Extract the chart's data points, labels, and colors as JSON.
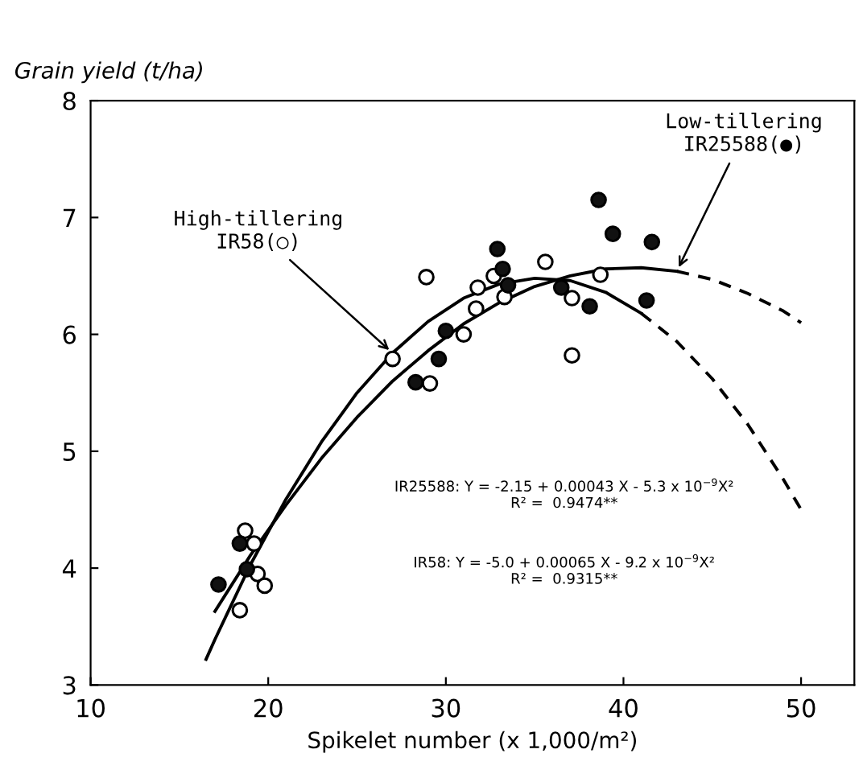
{
  "chart_data": {
    "type": "scatter",
    "xlabel": "Spikelet number (x 1,000/m²)",
    "ylabel": "Grain yield (t/ha)",
    "xlim": [
      10,
      53
    ],
    "xticks": [
      10,
      20,
      30,
      40,
      50
    ],
    "ylim": [
      3,
      8
    ],
    "yticks": [
      3,
      4,
      5,
      6,
      7,
      8
    ],
    "grid": false,
    "legend": false,
    "marker": "circle",
    "series": [
      {
        "type": "scatter",
        "color": "#ffffff",
        "x": [
          18.7,
          19.2,
          19.4,
          19.8,
          18.4,
          27.0,
          28.9,
          29.1,
          31.0,
          31.7,
          31.8,
          32.7,
          33.3,
          35.6,
          37.1,
          37.1,
          38.7
        ],
        "values": [
          4.32,
          4.21,
          3.95,
          3.85,
          3.64,
          5.79,
          6.49,
          5.58,
          6.0,
          6.22,
          6.4,
          6.5,
          6.32,
          6.62,
          6.31,
          5.82,
          6.51
        ]
      },
      {
        "type": "scatter",
        "color": "#111111",
        "x": [
          18.4,
          18.8,
          17.2,
          28.3,
          29.6,
          30.0,
          32.9,
          33.2,
          33.5,
          36.5,
          38.1,
          38.6,
          39.4,
          41.6,
          41.3
        ],
        "values": [
          4.21,
          3.99,
          3.86,
          5.59,
          5.79,
          6.03,
          6.73,
          6.56,
          6.42,
          6.4,
          6.24,
          7.15,
          6.86,
          6.79,
          6.29
        ]
      },
      {
        "type": "line",
        "color": "#000000",
        "line_style": "solid",
        "marker": "none",
        "x": [
          16.5,
          17,
          19,
          21,
          23,
          25,
          27,
          29,
          31,
          33,
          35,
          37,
          39,
          41
        ],
        "values": [
          3.22,
          3.39,
          4.03,
          4.59,
          5.08,
          5.5,
          5.84,
          6.11,
          6.31,
          6.43,
          6.48,
          6.46,
          6.36,
          6.18
        ]
      },
      {
        "type": "line",
        "color": "#000000",
        "line_style": "dashed",
        "marker": "none",
        "x": [
          41,
          43,
          45,
          47,
          49,
          50
        ],
        "values": [
          6.18,
          5.94,
          5.62,
          5.23,
          4.76,
          4.5
        ]
      },
      {
        "type": "line",
        "color": "#000000",
        "line_style": "solid",
        "marker": "none",
        "x": [
          17,
          19,
          21,
          23,
          25,
          27,
          29,
          31,
          33,
          35,
          37,
          39,
          41,
          43
        ],
        "values": [
          3.63,
          4.11,
          4.54,
          4.94,
          5.29,
          5.6,
          5.86,
          6.09,
          6.27,
          6.41,
          6.5,
          6.56,
          6.57,
          6.54
        ]
      },
      {
        "type": "line",
        "color": "#000000",
        "line_style": "dashed",
        "marker": "none",
        "x": [
          43,
          45,
          47,
          49,
          50
        ],
        "values": [
          6.54,
          6.47,
          6.35,
          6.2,
          6.1
        ]
      }
    ],
    "annotations": [
      {
        "text": "High-tillering\nIR58(○)",
        "x": 27,
        "y": 5.84
      },
      {
        "text": "Low-tillering\nIR25588(●)",
        "x": 43,
        "y": 6.54
      },
      "IR25588: Y = -2.15 + 0.00043 X - 5.3 x 10$^{−9}$X²\nR² =  0.9474**",
      "IR58: Y = -5.0 + 0.00065 X - 9.2 x 10$^{−9}$X²\nR² =  0.9315**"
    ]
  }
}
